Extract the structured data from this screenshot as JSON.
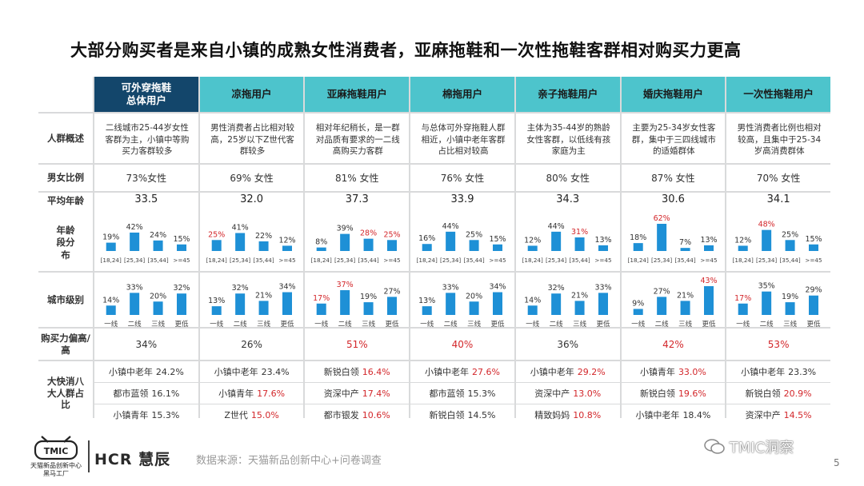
{
  "title": "大部分购买者是来自小镇的成熟女性消费者，亚麻拖鞋和一次性拖鞋客群相对购买力更高",
  "row_labels": {
    "overview": "人群概述",
    "gender": "男女比例",
    "avg_age": "平均年龄",
    "age_dist": "年龄段分布",
    "city": "城市级别",
    "purchasing": "购买力偏高/高",
    "top8": "大快消八大人群占比"
  },
  "age_categories": [
    "[18,24]",
    "[25,34]",
    "[35,44]",
    ">=45"
  ],
  "city_categories": [
    "一线",
    "二线",
    "三线",
    "更低"
  ],
  "colors": {
    "header_dark": "#13466b",
    "header_teal": "#4dc4cc",
    "bar": "#1e90d6",
    "highlight": "#d3272b"
  },
  "columns": [
    {
      "header": "可外穿拖鞋\n总体用户",
      "dark": true,
      "overview": "二线城市25-44岁女性客群为主，小镇中等购买力客群较多",
      "gender": "73%女性",
      "avg_age": "33.5",
      "age": [
        19,
        42,
        24,
        15
      ],
      "age_hl": [
        false,
        false,
        false,
        false
      ],
      "city": [
        14,
        33,
        20,
        32
      ],
      "city_hl": [
        false,
        false,
        false,
        false
      ],
      "purchasing": "34%",
      "purchasing_hl": false,
      "segments": [
        {
          "name": "小镇中老年",
          "value": "24.2%",
          "hl": false
        },
        {
          "name": "都市蓝领",
          "value": "16.1%",
          "hl": false
        },
        {
          "name": "小镇青年",
          "value": "15.3%",
          "hl": false
        }
      ]
    },
    {
      "header": "凉拖用户",
      "dark": false,
      "overview": "男性消费者占比相对较高，25岁以下Z世代客群较多",
      "gender": "69% 女性",
      "avg_age": "32.0",
      "age": [
        25,
        41,
        22,
        12
      ],
      "age_hl": [
        true,
        false,
        false,
        false
      ],
      "city": [
        13,
        32,
        21,
        34
      ],
      "city_hl": [
        false,
        false,
        false,
        false
      ],
      "purchasing": "26%",
      "purchasing_hl": false,
      "segments": [
        {
          "name": "小镇中老年",
          "value": "23.4%",
          "hl": false
        },
        {
          "name": "小镇青年",
          "value": "17.6%",
          "hl": true
        },
        {
          "name": "Z世代",
          "value": "15.0%",
          "hl": true
        }
      ]
    },
    {
      "header": "亚麻拖鞋用户",
      "dark": false,
      "overview": "相对年纪稍长，是一群对品质有要求的一二线高购买力客群",
      "gender": "81% 女性",
      "avg_age": "37.3",
      "age": [
        8,
        39,
        28,
        25
      ],
      "age_hl": [
        false,
        false,
        true,
        true
      ],
      "city": [
        17,
        37,
        19,
        27
      ],
      "city_hl": [
        true,
        true,
        false,
        false
      ],
      "purchasing": "51%",
      "purchasing_hl": true,
      "segments": [
        {
          "name": "新锐白领",
          "value": "16.4%",
          "hl": true
        },
        {
          "name": "资深中产",
          "value": "17.4%",
          "hl": true
        },
        {
          "name": "都市银发",
          "value": "10.6%",
          "hl": true
        }
      ]
    },
    {
      "header": "棉拖用户",
      "dark": false,
      "overview": "与总体可外穿拖鞋人群相近，小镇中老年客群占比相对较高",
      "gender": "76% 女性",
      "avg_age": "33.9",
      "age": [
        16,
        44,
        25,
        15
      ],
      "age_hl": [
        false,
        false,
        false,
        false
      ],
      "city": [
        13,
        33,
        20,
        34
      ],
      "city_hl": [
        false,
        false,
        false,
        false
      ],
      "purchasing": "40%",
      "purchasing_hl": true,
      "segments": [
        {
          "name": "小镇中老年",
          "value": "27.6%",
          "hl": true
        },
        {
          "name": "都市蓝领",
          "value": "15.3%",
          "hl": false
        },
        {
          "name": "新锐白领",
          "value": "14.5%",
          "hl": false
        }
      ]
    },
    {
      "header": "亲子拖鞋用户",
      "dark": false,
      "overview": "主体为35-44岁的熟龄女性客群，以低线有孩家庭为主",
      "gender": "80% 女性",
      "avg_age": "34.3",
      "age": [
        12,
        44,
        31,
        13
      ],
      "age_hl": [
        false,
        false,
        true,
        false
      ],
      "city": [
        14,
        32,
        21,
        33
      ],
      "city_hl": [
        false,
        false,
        false,
        false
      ],
      "purchasing": "36%",
      "purchasing_hl": false,
      "segments": [
        {
          "name": "小镇中老年",
          "value": "29.2%",
          "hl": true
        },
        {
          "name": "资深中产",
          "value": "13.0%",
          "hl": true
        },
        {
          "name": "精致妈妈",
          "value": "10.8%",
          "hl": true
        }
      ]
    },
    {
      "header": "婚庆拖鞋用户",
      "dark": false,
      "overview": "主要为25-34岁女性客群，集中于三四线城市的适婚群体",
      "gender": "87% 女性",
      "avg_age": "30.6",
      "age": [
        18,
        62,
        7,
        13
      ],
      "age_hl": [
        false,
        true,
        false,
        false
      ],
      "city": [
        9,
        27,
        21,
        43
      ],
      "city_hl": [
        false,
        false,
        false,
        true
      ],
      "purchasing": "42%",
      "purchasing_hl": true,
      "segments": [
        {
          "name": "小镇青年",
          "value": "33.0%",
          "hl": true
        },
        {
          "name": "新锐白领",
          "value": "19.6%",
          "hl": true
        },
        {
          "name": "小镇中老年",
          "value": "18.4%",
          "hl": false
        }
      ]
    },
    {
      "header": "一次性拖鞋用户",
      "dark": false,
      "overview": "男性消费者比例也相对较高，且集中于25-34岁高消费群体",
      "gender": "70% 女性",
      "avg_age": "34.1",
      "age": [
        12,
        48,
        25,
        15
      ],
      "age_hl": [
        false,
        true,
        false,
        false
      ],
      "city": [
        17,
        35,
        19,
        29
      ],
      "city_hl": [
        true,
        false,
        false,
        false
      ],
      "purchasing": "53%",
      "purchasing_hl": true,
      "segments": [
        {
          "name": "小镇中老年",
          "value": "23.3%",
          "hl": false
        },
        {
          "name": "新锐白领",
          "value": "20.9%",
          "hl": true
        },
        {
          "name": "资深中产",
          "value": "14.5%",
          "hl": true
        }
      ]
    }
  ],
  "chart_data": [
    {
      "type": "bar",
      "title": "年龄段分布",
      "categories": [
        "[18,24]",
        "[25,34]",
        "[35,44]",
        ">=45"
      ],
      "series": [
        {
          "name": "可外穿拖鞋总体用户",
          "values": [
            19,
            42,
            24,
            15
          ]
        },
        {
          "name": "凉拖用户",
          "values": [
            25,
            41,
            22,
            12
          ]
        },
        {
          "name": "亚麻拖鞋用户",
          "values": [
            8,
            39,
            28,
            25
          ]
        },
        {
          "name": "棉拖用户",
          "values": [
            16,
            44,
            25,
            15
          ]
        },
        {
          "name": "亲子拖鞋用户",
          "values": [
            12,
            44,
            31,
            13
          ]
        },
        {
          "name": "婚庆拖鞋用户",
          "values": [
            18,
            62,
            7,
            13
          ]
        },
        {
          "name": "一次性拖鞋用户",
          "values": [
            12,
            48,
            25,
            15
          ]
        }
      ],
      "unit": "%"
    },
    {
      "type": "bar",
      "title": "城市级别",
      "categories": [
        "一线",
        "二线",
        "三线",
        "更低"
      ],
      "series": [
        {
          "name": "可外穿拖鞋总体用户",
          "values": [
            14,
            33,
            20,
            32
          ]
        },
        {
          "name": "凉拖用户",
          "values": [
            13,
            32,
            21,
            34
          ]
        },
        {
          "name": "亚麻拖鞋用户",
          "values": [
            17,
            37,
            19,
            27
          ]
        },
        {
          "name": "棉拖用户",
          "values": [
            13,
            33,
            20,
            34
          ]
        },
        {
          "name": "亲子拖鞋用户",
          "values": [
            14,
            32,
            21,
            33
          ]
        },
        {
          "name": "婚庆拖鞋用户",
          "values": [
            9,
            27,
            21,
            43
          ]
        },
        {
          "name": "一次性拖鞋用户",
          "values": [
            17,
            35,
            19,
            29
          ]
        }
      ],
      "unit": "%"
    }
  ],
  "footer": {
    "logo_text": "TMIC",
    "logo_caption_1": "天猫新品创新中心",
    "logo_caption_2": "黑马工厂",
    "hcr": "HCR 慧辰",
    "source": "数据来源：天猫新品创新中心+问卷调查",
    "wechat": "TMIC洞察",
    "page": "5"
  }
}
